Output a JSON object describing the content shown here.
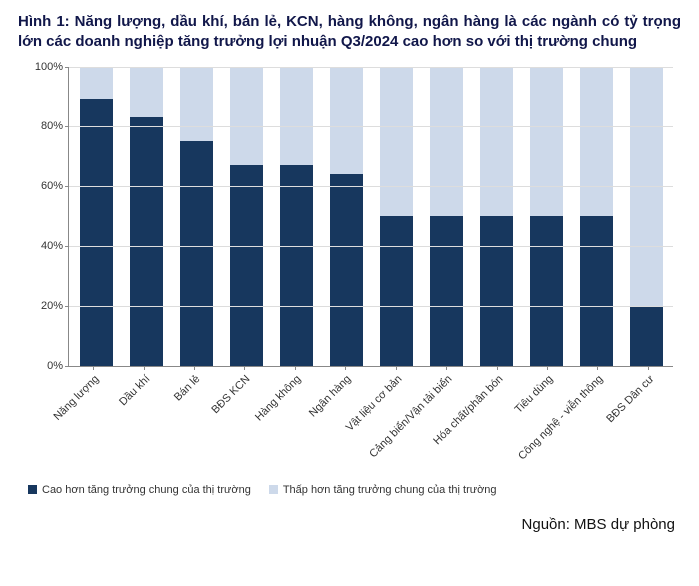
{
  "title": "Hình 1: Năng lượng, dầu khí, bán lẻ, KCN, hàng không, ngân hàng là các ngành có tỷ trọng lớn các doanh nghiệp tăng trưởng lợi nhuận Q3/2024 cao hơn so với thị trường chung",
  "chart": {
    "type": "stacked-bar-100",
    "y": {
      "min": 0,
      "max": 100,
      "tick_step": 20,
      "suffix": "%"
    },
    "series": [
      {
        "key": "high",
        "label": "Cao hơn tăng trưởng chung của thị trường",
        "color": "#17375e"
      },
      {
        "key": "low",
        "label": "Thấp hơn tăng trưởng chung của thị trường",
        "color": "#cdd9ea"
      }
    ],
    "categories": [
      {
        "label": "Năng lượng",
        "high": 89,
        "low": 11
      },
      {
        "label": "Dầu khí",
        "high": 83,
        "low": 17
      },
      {
        "label": "Bán lẻ",
        "high": 75,
        "low": 25
      },
      {
        "label": "BĐS KCN",
        "high": 67,
        "low": 33
      },
      {
        "label": "Hàng không",
        "high": 67,
        "low": 33
      },
      {
        "label": "Ngân hàng",
        "high": 64,
        "low": 36
      },
      {
        "label": "Vật liệu cơ bản",
        "high": 50,
        "low": 50
      },
      {
        "label": "Cảng biển/Vận tải biển",
        "high": 50,
        "low": 50
      },
      {
        "label": "Hóa chất/phân bón",
        "high": 50,
        "low": 50
      },
      {
        "label": "Tiêu dùng",
        "high": 50,
        "low": 50
      },
      {
        "label": "Công nghệ - viễn thông",
        "high": 50,
        "low": 50
      },
      {
        "label": "BĐS Dân cư",
        "high": 20,
        "low": 80
      }
    ],
    "bar_width": 0.66,
    "background_color": "#ffffff",
    "grid_color": "#dddddd",
    "axis_color": "#888888",
    "label_fontsize": 11,
    "title_fontsize": 15,
    "title_color": "#11174a"
  },
  "source": "Nguồn: MBS dự phòng"
}
